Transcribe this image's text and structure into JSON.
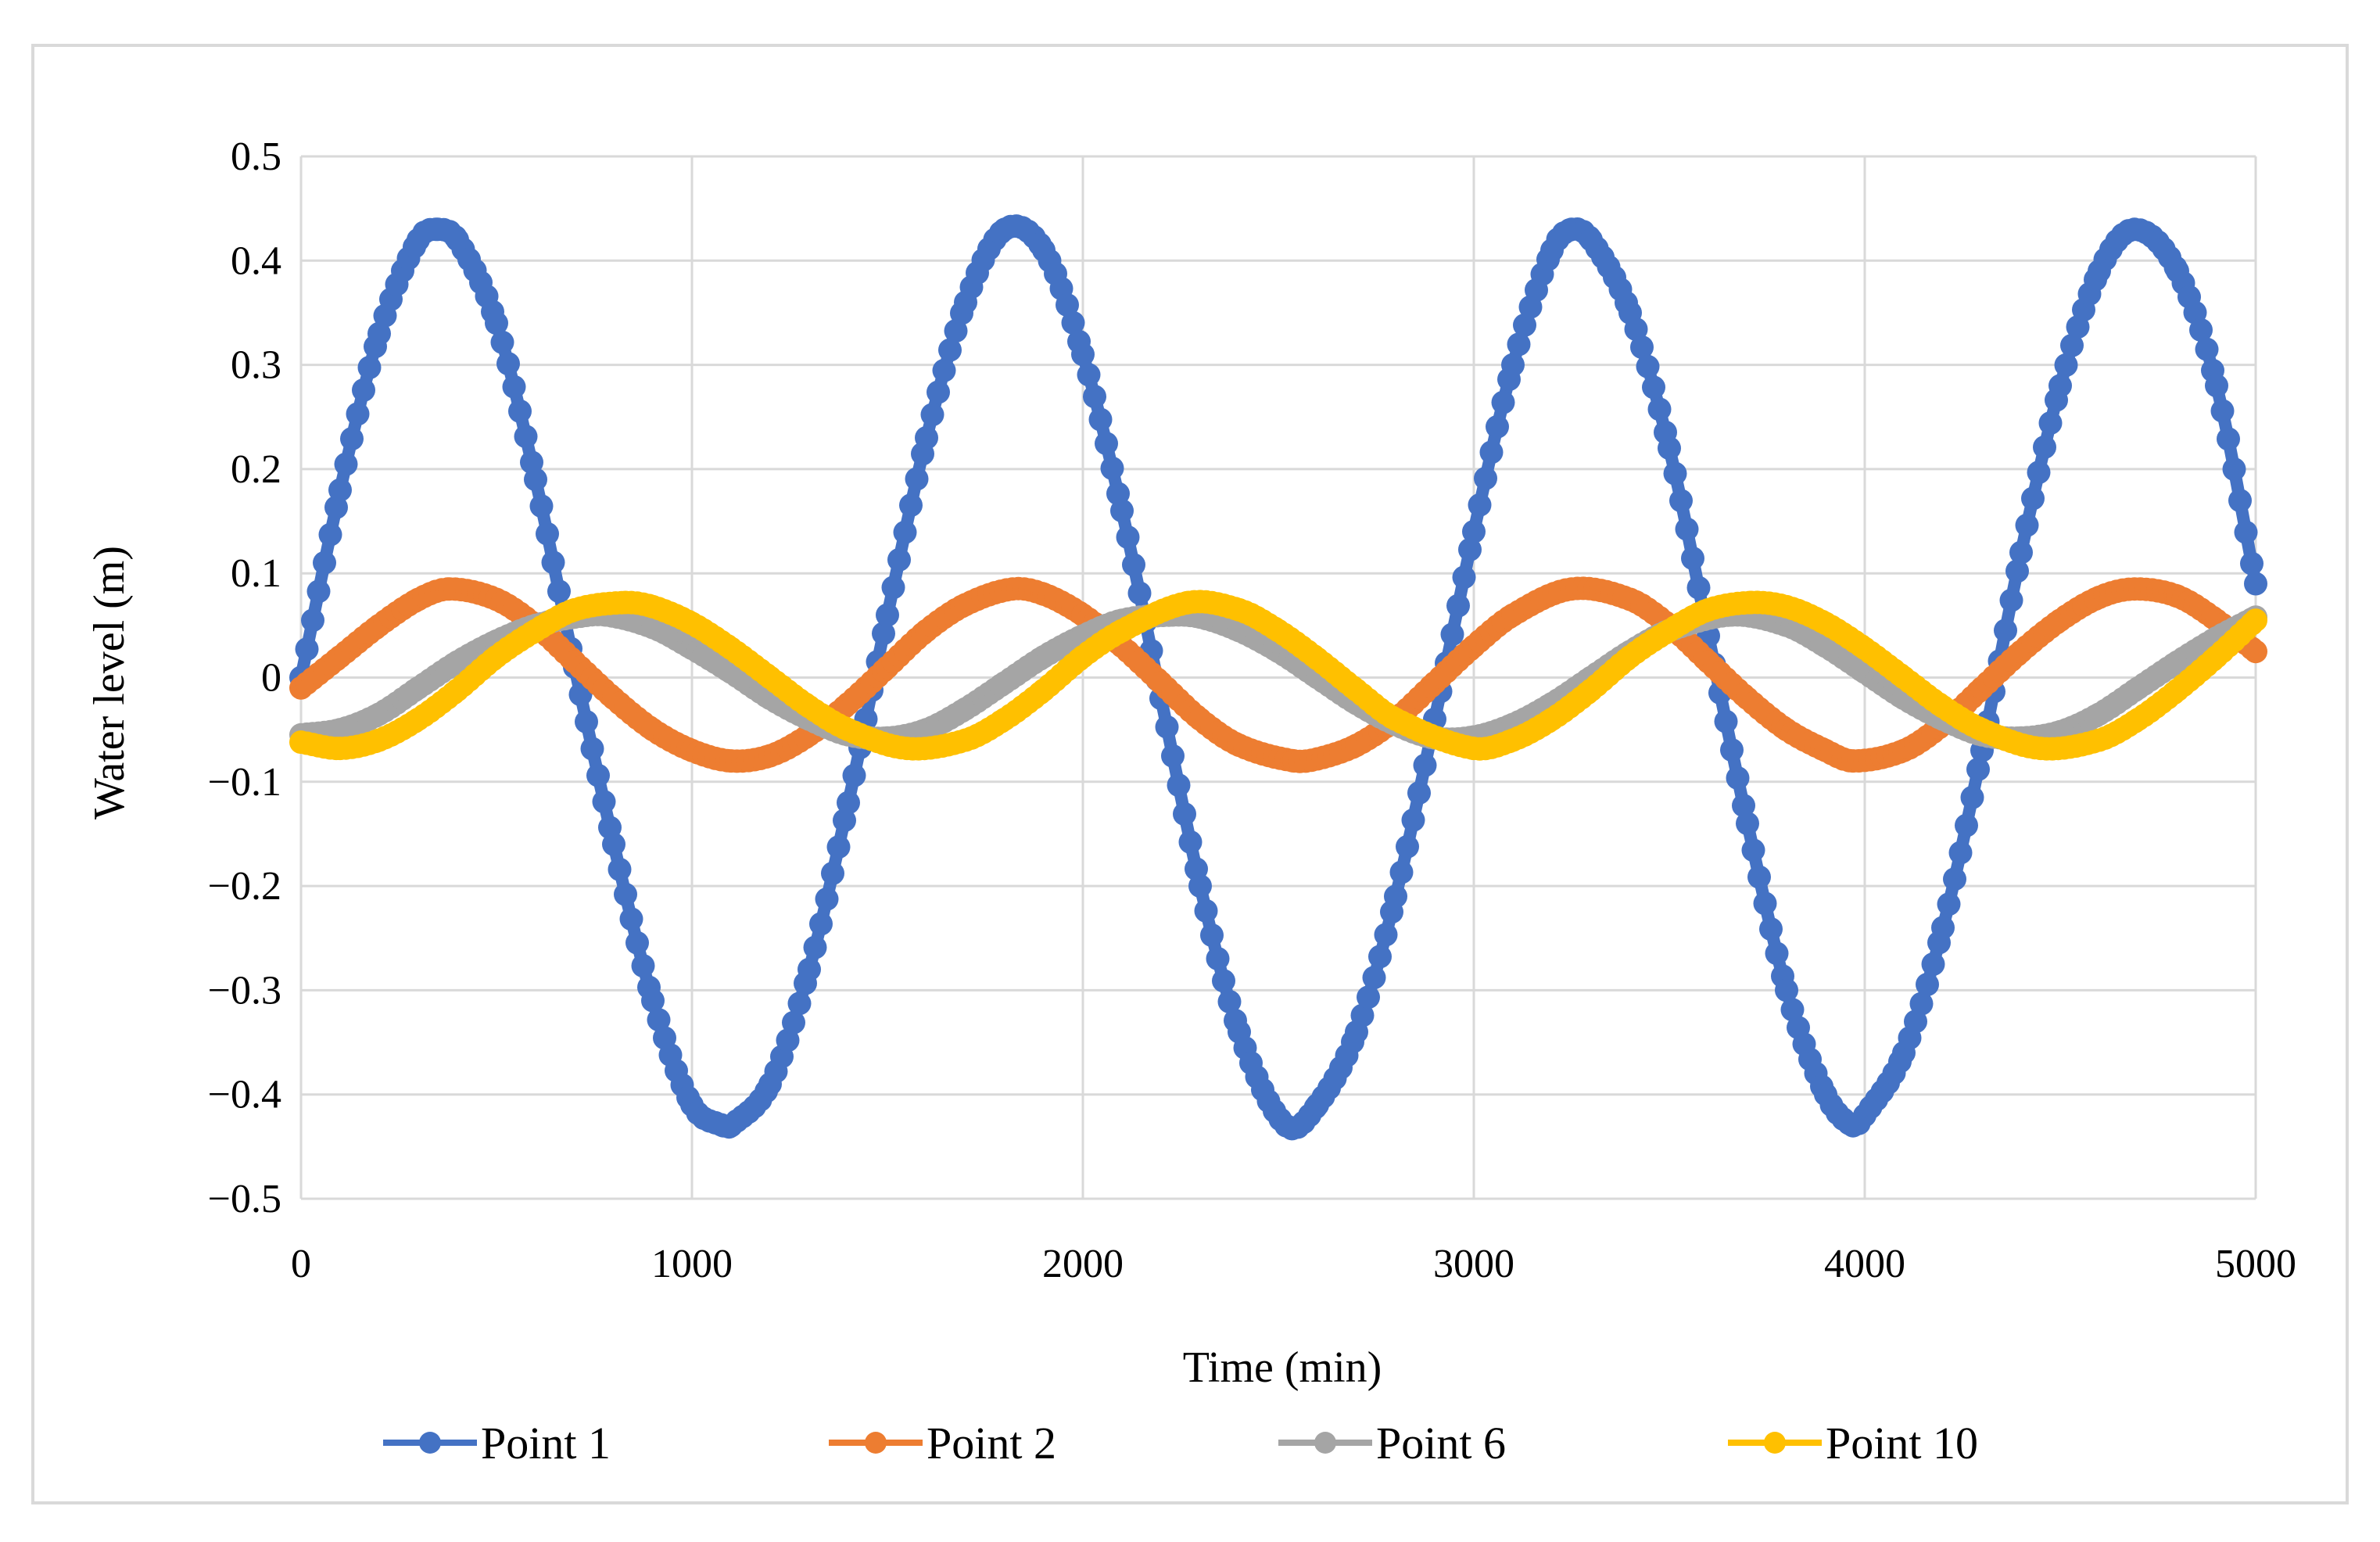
{
  "chart_data": {
    "type": "scatter",
    "title": "",
    "xlabel": "Time (min)",
    "ylabel": "Water level (m)",
    "xlim": [
      0,
      5000
    ],
    "ylim": [
      -0.5,
      0.5
    ],
    "xticks": [
      0,
      1000,
      2000,
      3000,
      4000,
      5000
    ],
    "xtick_labels": [
      "0",
      "1000",
      "2000",
      "3000",
      "4000",
      "5000"
    ],
    "yticks": [
      -0.5,
      -0.4,
      -0.3,
      -0.2,
      -0.1,
      0,
      0.1,
      0.2,
      0.3,
      0.4,
      0.5
    ],
    "ytick_labels": [
      "−0.5",
      "−0.4",
      "−0.3",
      "−0.2",
      "−0.1",
      "0",
      "0.1",
      "0.2",
      "0.3",
      "0.4",
      "0.5"
    ],
    "grid": true,
    "legend_position": "bottom",
    "series": [
      {
        "name": "Point 1",
        "color": "#4472C4",
        "x": [
          0,
          100,
          200,
          300,
          350,
          400,
          500,
          600,
          700,
          800,
          900,
          1000,
          1080,
          1100,
          1200,
          1300,
          1400,
          1500,
          1600,
          1700,
          1800,
          1900,
          2000,
          2100,
          2200,
          2300,
          2400,
          2520,
          2600,
          2700,
          2800,
          2900,
          3000,
          3100,
          3200,
          3250,
          3300,
          3400,
          3500,
          3600,
          3700,
          3800,
          3900,
          3970,
          4000,
          4100,
          4200,
          4300,
          4400,
          4500,
          4600,
          4690,
          4800,
          4900,
          5000
        ],
        "y": [
          0.0,
          0.18,
          0.33,
          0.42,
          0.43,
          0.42,
          0.34,
          0.19,
          0.01,
          -0.16,
          -0.31,
          -0.41,
          -0.43,
          -0.43,
          -0.39,
          -0.28,
          -0.12,
          0.06,
          0.23,
          0.36,
          0.43,
          0.41,
          0.31,
          0.16,
          -0.02,
          -0.2,
          -0.34,
          -0.43,
          -0.41,
          -0.34,
          -0.21,
          -0.04,
          0.14,
          0.3,
          0.41,
          0.43,
          0.42,
          0.35,
          0.22,
          0.04,
          -0.14,
          -0.3,
          -0.4,
          -0.43,
          -0.42,
          -0.36,
          -0.24,
          -0.07,
          0.12,
          0.28,
          0.39,
          0.43,
          0.39,
          0.28,
          0.09
        ]
      },
      {
        "name": "Point 2",
        "color": "#ED7D31",
        "x": [
          0,
          100,
          200,
          300,
          380,
          500,
          600,
          700,
          800,
          900,
          1000,
          1100,
          1200,
          1300,
          1400,
          1500,
          1600,
          1700,
          1820,
          1900,
          2000,
          2100,
          2200,
          2300,
          2400,
          2540,
          2600,
          2700,
          2800,
          2900,
          3000,
          3100,
          3250,
          3400,
          3500,
          3600,
          3700,
          3800,
          3900,
          3970,
          4100,
          4200,
          4300,
          4400,
          4500,
          4600,
          4690,
          4800,
          4900,
          5000
        ],
        "y": [
          -0.01,
          0.02,
          0.05,
          0.075,
          0.085,
          0.075,
          0.05,
          0.015,
          -0.02,
          -0.05,
          -0.07,
          -0.08,
          -0.075,
          -0.055,
          -0.025,
          0.01,
          0.045,
          0.07,
          0.085,
          0.08,
          0.06,
          0.03,
          -0.005,
          -0.04,
          -0.065,
          -0.08,
          -0.078,
          -0.065,
          -0.04,
          -0.005,
          0.03,
          0.06,
          0.085,
          0.075,
          0.05,
          0.015,
          -0.02,
          -0.05,
          -0.07,
          -0.08,
          -0.07,
          -0.045,
          -0.01,
          0.025,
          0.055,
          0.077,
          0.085,
          0.078,
          0.055,
          0.025
        ]
      },
      {
        "name": "Point 6",
        "color": "#A5A5A5",
        "x": [
          0,
          100,
          200,
          300,
          400,
          500,
          600,
          700,
          780,
          900,
          1000,
          1100,
          1200,
          1300,
          1400,
          1500,
          1600,
          1700,
          1800,
          1900,
          2000,
          2100,
          2230,
          2300,
          2400,
          2500,
          2600,
          2700,
          2800,
          2900,
          3000,
          3100,
          3200,
          3300,
          3400,
          3500,
          3660,
          3800,
          3900,
          4000,
          4100,
          4200,
          4300,
          4400,
          4500,
          4600,
          4700,
          4800,
          4900,
          5000
        ],
        "y": [
          -0.055,
          -0.05,
          -0.035,
          -0.01,
          0.015,
          0.035,
          0.05,
          0.058,
          0.06,
          0.048,
          0.028,
          0.005,
          -0.02,
          -0.04,
          -0.055,
          -0.058,
          -0.05,
          -0.03,
          -0.005,
          0.02,
          0.04,
          0.055,
          0.06,
          0.058,
          0.045,
          0.025,
          0.0,
          -0.025,
          -0.045,
          -0.058,
          -0.057,
          -0.045,
          -0.025,
          0.0,
          0.025,
          0.045,
          0.06,
          0.05,
          0.03,
          0.005,
          -0.02,
          -0.04,
          -0.055,
          -0.058,
          -0.052,
          -0.035,
          -0.01,
          0.015,
          0.038,
          0.058
        ]
      },
      {
        "name": "Point 10",
        "color": "#FFC000",
        "x": [
          0,
          100,
          200,
          300,
          400,
          500,
          600,
          700,
          830,
          900,
          1000,
          1100,
          1200,
          1300,
          1400,
          1550,
          1700,
          1800,
          1900,
          2000,
          2100,
          2270,
          2400,
          2500,
          2600,
          2700,
          2800,
          3000,
          3100,
          3200,
          3300,
          3400,
          3500,
          3600,
          3710,
          3800,
          3900,
          4000,
          4100,
          4200,
          4300,
          4450,
          4600,
          4700,
          4800,
          4900,
          5000
        ],
        "y": [
          -0.062,
          -0.068,
          -0.06,
          -0.04,
          -0.012,
          0.02,
          0.045,
          0.065,
          0.072,
          0.068,
          0.052,
          0.028,
          0.0,
          -0.028,
          -0.05,
          -0.068,
          -0.06,
          -0.04,
          -0.012,
          0.02,
          0.045,
          0.072,
          0.065,
          0.045,
          0.018,
          -0.012,
          -0.04,
          -0.068,
          -0.06,
          -0.04,
          -0.012,
          0.02,
          0.045,
          0.065,
          0.072,
          0.068,
          0.052,
          0.028,
          0.0,
          -0.028,
          -0.05,
          -0.068,
          -0.06,
          -0.04,
          -0.012,
          0.02,
          0.055
        ]
      }
    ]
  }
}
